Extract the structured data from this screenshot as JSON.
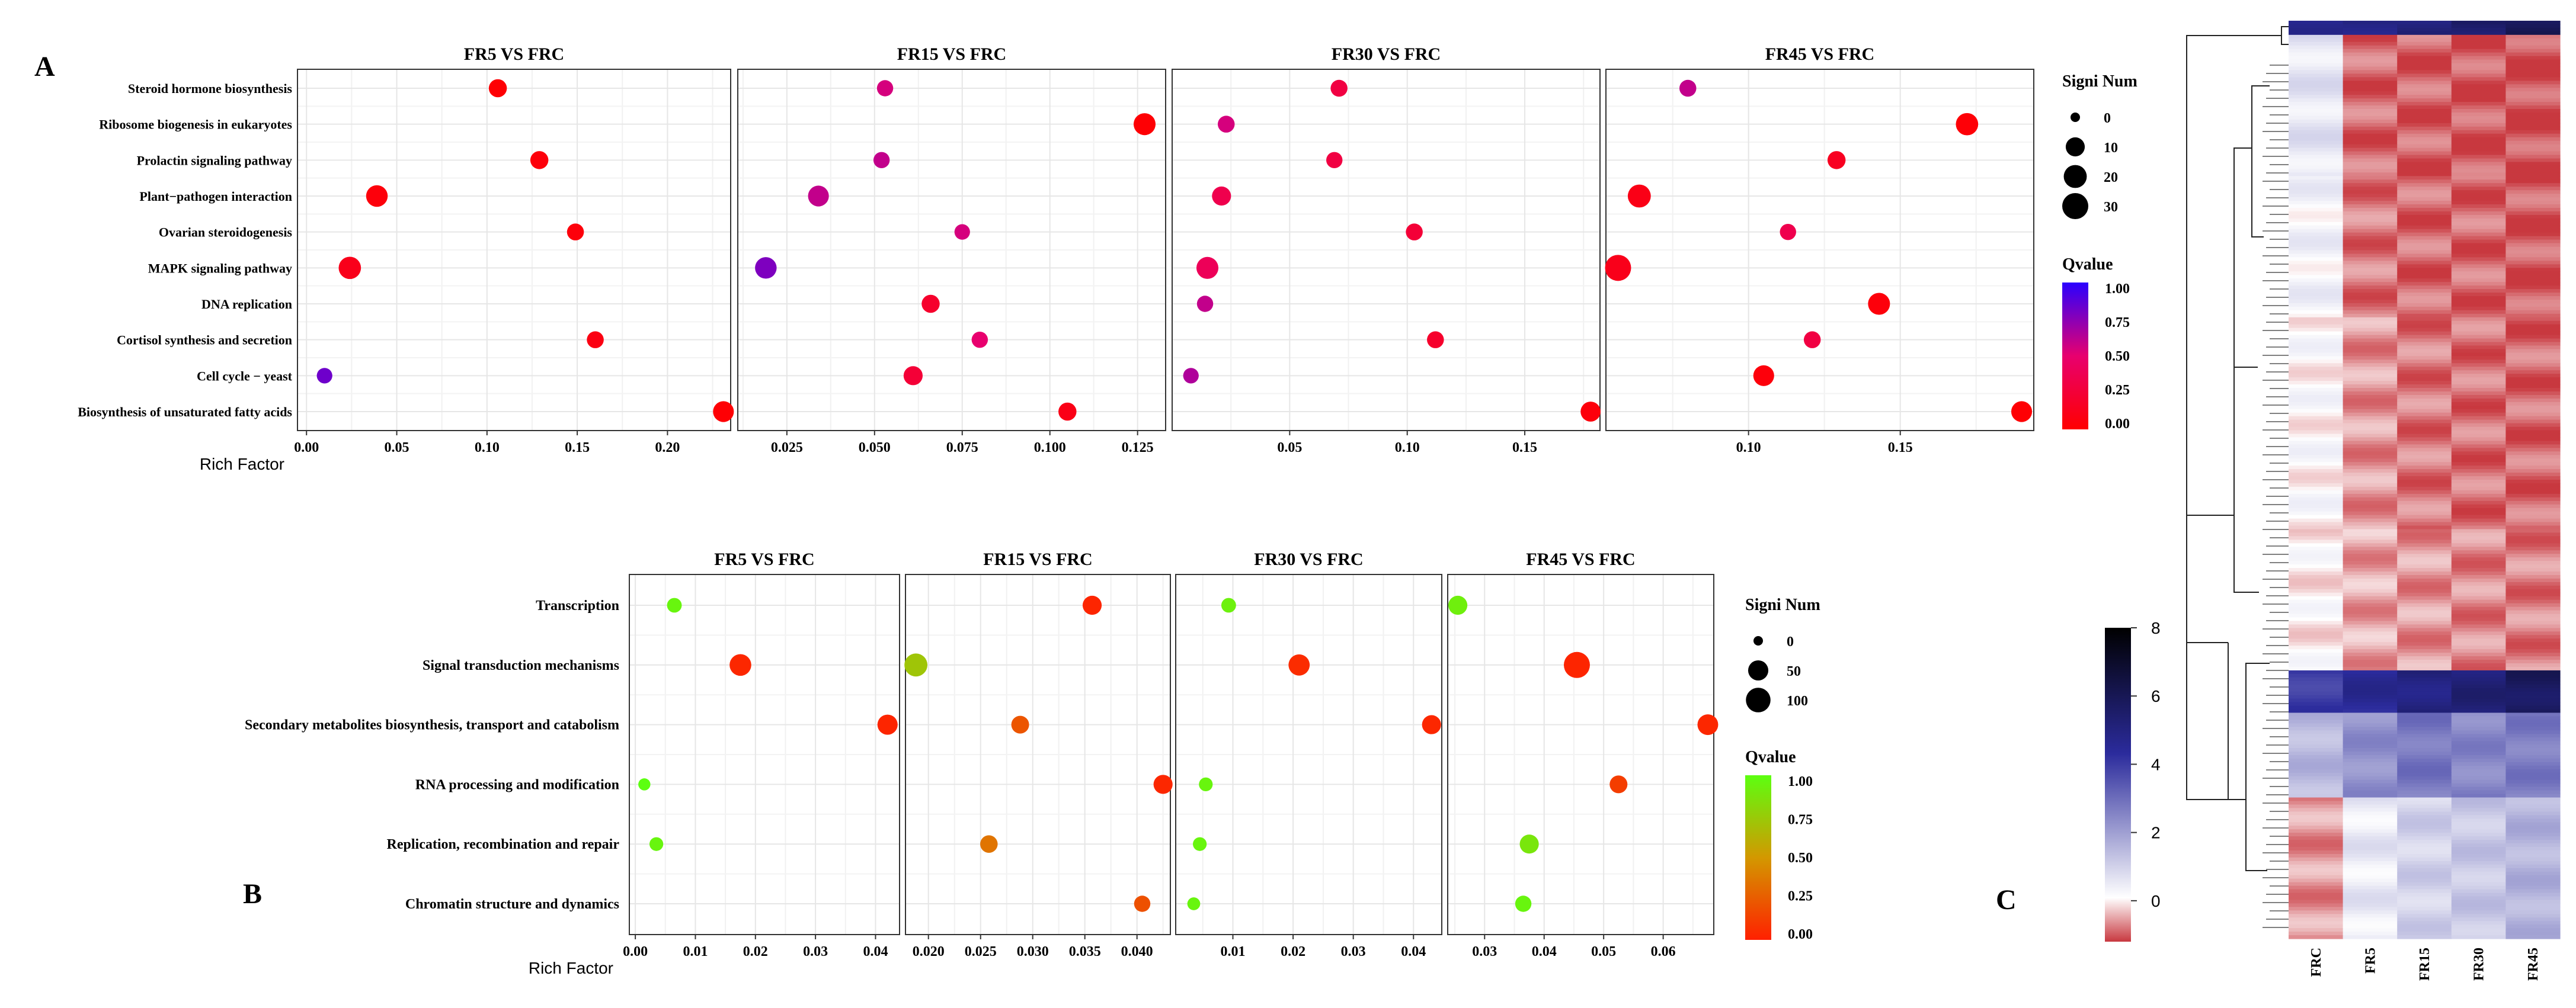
{
  "panel_labels": {
    "a": "A",
    "b": "B",
    "c": "C"
  },
  "chart_data": [
    {
      "id": "A",
      "type": "scatter",
      "subtype": "kegg-enrichment-bubble",
      "xlabel": "Rich Factor",
      "categories": [
        "Steroid hormone biosynthesis",
        "Ribosome biogenesis in eukaryotes",
        "Prolactin signaling pathway",
        "Plant−pathogen interaction",
        "Ovarian steroidogenesis",
        "MAPK signaling pathway",
        "DNA replication",
        "Cortisol synthesis and secretion",
        "Cell cycle − yeast",
        "Biosynthesis of unsaturated fatty acids"
      ],
      "size_legend": {
        "title": "Signi Num",
        "values": [
          0,
          10,
          20,
          30
        ]
      },
      "color_legend": {
        "title": "Qvalue",
        "ticks": [
          "1.00",
          "0.75",
          "0.50",
          "0.25",
          "0.00"
        ],
        "low_color": "#ff0000",
        "mid_color": "#e8006e",
        "high_color": "#2a00ff"
      },
      "facets": [
        {
          "title": "FR5 VS FRC",
          "xlim": [
            -0.005,
            0.235
          ],
          "ticks": [
            0.0,
            0.05,
            0.1,
            0.15,
            0.2
          ],
          "tick_labels": [
            "0.00",
            "0.05",
            "0.10",
            "0.15",
            "0.20"
          ],
          "points": [
            {
              "category": "Steroid hormone biosynthesis",
              "x": 0.106,
              "num": 8,
              "q": 0.02
            },
            {
              "category": "Ribosome biogenesis in eukaryotes",
              "x": null,
              "num": null,
              "q": null
            },
            {
              "category": "Prolactin signaling pathway",
              "x": 0.129,
              "num": 8,
              "q": 0.05
            },
            {
              "category": "Plant−pathogen interaction",
              "x": 0.039,
              "num": 16,
              "q": 0.05
            },
            {
              "category": "Ovarian steroidogenesis",
              "x": 0.149,
              "num": 6,
              "q": 0.05
            },
            {
              "category": "MAPK signaling pathway",
              "x": 0.024,
              "num": 18,
              "q": 0.12
            },
            {
              "category": "DNA replication",
              "x": null,
              "num": null,
              "q": null
            },
            {
              "category": "Cortisol synthesis and secretion",
              "x": 0.16,
              "num": 6,
              "q": 0.08
            },
            {
              "category": "Cell cycle − yeast",
              "x": 0.01,
              "num": 4,
              "q": 0.82
            },
            {
              "category": "Biosynthesis of unsaturated fatty acids",
              "x": 0.231,
              "num": 14,
              "q": 0.02
            }
          ]
        },
        {
          "title": "FR15 VS FRC",
          "xlim": [
            0.011,
            0.133
          ],
          "ticks": [
            0.025,
            0.05,
            0.075,
            0.1,
            0.125
          ],
          "tick_labels": [
            "0.025",
            "0.050",
            "0.075",
            "0.100",
            "0.125"
          ],
          "points": [
            {
              "category": "Steroid hormone biosynthesis",
              "x": 0.053,
              "num": 5,
              "q": 0.55
            },
            {
              "category": "Ribosome biogenesis in eukaryotes",
              "x": 0.127,
              "num": 17,
              "q": 0.02
            },
            {
              "category": "Prolactin signaling pathway",
              "x": 0.052,
              "num": 5,
              "q": 0.6
            },
            {
              "category": "Plant−pathogen interaction",
              "x": 0.034,
              "num": 14,
              "q": 0.6
            },
            {
              "category": "Ovarian steroidogenesis",
              "x": 0.075,
              "num": 4,
              "q": 0.55
            },
            {
              "category": "MAPK signaling pathway",
              "x": 0.019,
              "num": 16,
              "q": 0.78
            },
            {
              "category": "DNA replication",
              "x": 0.066,
              "num": 8,
              "q": 0.2
            },
            {
              "category": "Cortisol synthesis and secretion",
              "x": 0.08,
              "num": 5,
              "q": 0.5
            },
            {
              "category": "Cell cycle − yeast",
              "x": 0.061,
              "num": 10,
              "q": 0.25
            },
            {
              "category": "Biosynthesis of unsaturated fatty acids",
              "x": 0.105,
              "num": 8,
              "q": 0.1
            }
          ]
        },
        {
          "title": "FR30 VS FRC",
          "xlim": [
            -0.0,
            0.182
          ],
          "ticks": [
            0.05,
            0.1,
            0.15
          ],
          "tick_labels": [
            "0.05",
            "0.10",
            "0.15"
          ],
          "points": [
            {
              "category": "Steroid hormone biosynthesis",
              "x": 0.071,
              "num": 6,
              "q": 0.3
            },
            {
              "category": "Ribosome biogenesis in eukaryotes",
              "x": 0.023,
              "num": 6,
              "q": 0.55
            },
            {
              "category": "Prolactin signaling pathway",
              "x": 0.069,
              "num": 5,
              "q": 0.3
            },
            {
              "category": "Plant−pathogen interaction",
              "x": 0.021,
              "num": 10,
              "q": 0.35
            },
            {
              "category": "Ovarian steroidogenesis",
              "x": 0.103,
              "num": 6,
              "q": 0.25
            },
            {
              "category": "MAPK signaling pathway",
              "x": 0.015,
              "num": 17,
              "q": 0.4
            },
            {
              "category": "DNA replication",
              "x": 0.014,
              "num": 5,
              "q": 0.6
            },
            {
              "category": "Cortisol synthesis and secretion",
              "x": 0.112,
              "num": 6,
              "q": 0.2
            },
            {
              "category": "Cell cycle − yeast",
              "x": 0.008,
              "num": 4,
              "q": 0.65
            },
            {
              "category": "Biosynthesis of unsaturated fatty acids",
              "x": 0.178,
              "num": 12,
              "q": 0.05
            }
          ]
        },
        {
          "title": "FR45 VS FRC",
          "xlim": [
            0.053,
            0.194
          ],
          "ticks": [
            0.1,
            0.15
          ],
          "tick_labels": [
            "0.10",
            "0.15"
          ],
          "points": [
            {
              "category": "Steroid hormone biosynthesis",
              "x": 0.08,
              "num": 6,
              "q": 0.6
            },
            {
              "category": "Ribosome biogenesis in eukaryotes",
              "x": 0.172,
              "num": 18,
              "q": 0.03
            },
            {
              "category": "Prolactin signaling pathway",
              "x": 0.129,
              "num": 8,
              "q": 0.15
            },
            {
              "category": "Plant−pathogen interaction",
              "x": 0.064,
              "num": 20,
              "q": 0.1
            },
            {
              "category": "Ovarian steroidogenesis",
              "x": 0.113,
              "num": 5,
              "q": 0.35
            },
            {
              "category": "MAPK signaling pathway",
              "x": 0.057,
              "num": 30,
              "q": 0.12
            },
            {
              "category": "DNA replication",
              "x": 0.143,
              "num": 17,
              "q": 0.05
            },
            {
              "category": "Cortisol synthesis and secretion",
              "x": 0.121,
              "num": 6,
              "q": 0.3
            },
            {
              "category": "Cell cycle − yeast",
              "x": 0.105,
              "num": 14,
              "q": 0.05
            },
            {
              "category": "Biosynthesis of unsaturated fatty acids",
              "x": 0.19,
              "num": 14,
              "q": 0.02
            }
          ]
        }
      ]
    },
    {
      "id": "B",
      "type": "scatter",
      "subtype": "cog-enrichment-bubble",
      "xlabel": "Rich Factor",
      "categories": [
        "Transcription",
        "Signal transduction mechanisms",
        "Secondary metabolites biosynthesis, transport and catabolism",
        "RNA processing and modification",
        "Replication, recombination and repair",
        "Chromatin structure and dynamics"
      ],
      "size_legend": {
        "title": "Signi Num",
        "values": [
          0,
          50,
          100
        ]
      },
      "color_legend": {
        "title": "Qvalue",
        "ticks": [
          "1.00",
          "0.75",
          "0.50",
          "0.25",
          "0.00"
        ],
        "low_color": "#ff2000",
        "mid_color": "#d39800",
        "high_color": "#5cff10"
      },
      "facets": [
        {
          "title": "FR5 VS FRC",
          "xlim": [
            -0.001,
            0.044
          ],
          "ticks": [
            0.0,
            0.01,
            0.02,
            0.03,
            0.04
          ],
          "tick_labels": [
            "0.00",
            "0.01",
            "0.02",
            "0.03",
            "0.04"
          ],
          "points": [
            {
              "category": "Transcription",
              "x": 0.0065,
              "num": 12,
              "q": 0.95
            },
            {
              "category": "Signal transduction mechanisms",
              "x": 0.0175,
              "num": 65,
              "q": 0.03
            },
            {
              "category": "Secondary metabolites biosynthesis, transport and catabolism",
              "x": 0.042,
              "num": 50,
              "q": 0.02
            },
            {
              "category": "RNA processing and modification",
              "x": 0.0015,
              "num": 3,
              "q": 1.0
            },
            {
              "category": "Replication, recombination and repair",
              "x": 0.0035,
              "num": 8,
              "q": 0.95
            },
            {
              "category": "Chromatin structure and dynamics",
              "x": null,
              "num": null,
              "q": null
            }
          ]
        },
        {
          "title": "FR15 VS FRC",
          "xlim": [
            0.0178,
            0.0432
          ],
          "ticks": [
            0.02,
            0.025,
            0.03,
            0.035,
            0.04
          ],
          "tick_labels": [
            "0.020",
            "0.025",
            "0.030",
            "0.035",
            "0.040"
          ],
          "points": [
            {
              "category": "Transcription",
              "x": 0.0357,
              "num": 40,
              "q": 0.02
            },
            {
              "category": "Signal transduction mechanisms",
              "x": 0.0188,
              "num": 80,
              "q": 0.72
            },
            {
              "category": "Secondary metabolites biosynthesis, transport and catabolism",
              "x": 0.0288,
              "num": 30,
              "q": 0.22
            },
            {
              "category": "RNA processing and modification",
              "x": 0.0425,
              "num": 40,
              "q": 0.03
            },
            {
              "category": "Replication, recombination and repair",
              "x": 0.0258,
              "num": 28,
              "q": 0.35
            },
            {
              "category": "Chromatin structure and dynamics",
              "x": 0.0405,
              "num": 20,
              "q": 0.2
            }
          ]
        },
        {
          "title": "FR30 VS FRC",
          "xlim": [
            0.0005,
            0.0447
          ],
          "ticks": [
            0.01,
            0.02,
            0.03,
            0.04
          ],
          "tick_labels": [
            "0.01",
            "0.02",
            "0.03",
            "0.04"
          ],
          "points": [
            {
              "category": "Transcription",
              "x": 0.0093,
              "num": 12,
              "q": 0.93
            },
            {
              "category": "Signal transduction mechanisms",
              "x": 0.021,
              "num": 60,
              "q": 0.05
            },
            {
              "category": "Secondary metabolites biosynthesis, transport and catabolism",
              "x": 0.043,
              "num": 40,
              "q": 0.03
            },
            {
              "category": "RNA processing and modification",
              "x": 0.0055,
              "num": 8,
              "q": 0.95
            },
            {
              "category": "Replication, recombination and repair",
              "x": 0.0045,
              "num": 8,
              "q": 0.95
            },
            {
              "category": "Chromatin structure and dynamics",
              "x": 0.0035,
              "num": 5,
              "q": 0.95
            }
          ]
        },
        {
          "title": "FR45 VS FRC",
          "xlim": [
            0.0238,
            0.0685
          ],
          "ticks": [
            0.03,
            0.04,
            0.05,
            0.06
          ],
          "tick_labels": [
            "0.03",
            "0.04",
            "0.05",
            "0.06"
          ],
          "points": [
            {
              "category": "Transcription",
              "x": 0.0255,
              "num": 40,
              "q": 0.92
            },
            {
              "category": "Signal transduction mechanisms",
              "x": 0.0455,
              "num": 120,
              "q": 0.02
            },
            {
              "category": "Secondary metabolites biosynthesis, transport and catabolism",
              "x": 0.0675,
              "num": 55,
              "q": 0.03
            },
            {
              "category": "RNA processing and modification",
              "x": 0.0525,
              "num": 30,
              "q": 0.12
            },
            {
              "category": "Replication, recombination and repair",
              "x": 0.0375,
              "num": 40,
              "q": 0.88
            },
            {
              "category": "Chromatin structure and dynamics",
              "x": 0.0365,
              "num": 20,
              "q": 0.95
            }
          ]
        }
      ]
    },
    {
      "id": "C",
      "type": "heatmap",
      "columns": [
        "FRC",
        "FR5",
        "FR15",
        "FR30",
        "FR45"
      ],
      "colorbar": {
        "ticks": [
          8,
          6,
          4,
          2,
          0
        ],
        "range": [
          -1.2,
          8
        ],
        "colors": [
          "#c8383f",
          "#ffffff",
          "#2b2b9c",
          "#000000"
        ]
      },
      "row_bands": [
        {
          "rows": 4,
          "values": [
            4.5,
            5,
            5,
            5.5,
            6
          ]
        },
        {
          "rows": 40,
          "values": [
            0.6,
            -0.9,
            -0.95,
            -1.0,
            -1.05
          ]
        },
        {
          "rows": 40,
          "values": [
            0.3,
            -0.8,
            -0.9,
            -0.9,
            -1.0
          ]
        },
        {
          "rows": 60,
          "values": [
            0.1,
            -0.6,
            -0.8,
            -0.85,
            -0.9
          ]
        },
        {
          "rows": 40,
          "values": [
            0.0,
            -0.5,
            -0.6,
            -0.7,
            -0.75
          ]
        },
        {
          "rows": 12,
          "values": [
            4.0,
            4.5,
            5.0,
            5.2,
            5.8
          ]
        },
        {
          "rows": 24,
          "values": [
            1.5,
            2.3,
            2.8,
            2.5,
            2.7
          ]
        },
        {
          "rows": 40,
          "values": [
            -0.6,
            0.5,
            1.0,
            1.2,
            1.6
          ]
        }
      ]
    }
  ]
}
